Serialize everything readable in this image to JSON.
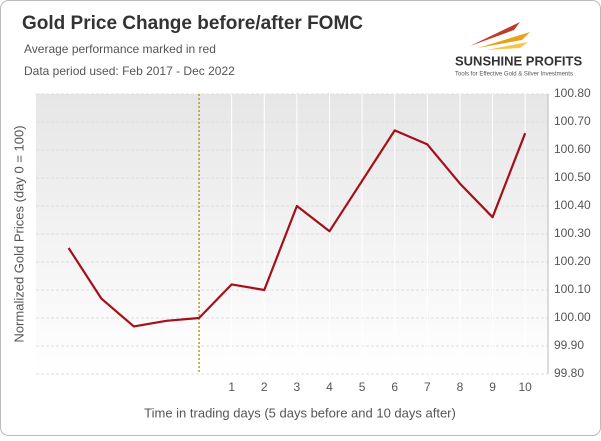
{
  "chart_data": {
    "type": "line",
    "title": "Gold Price Change before/after FOMC",
    "subtitle": "Average performance marked in red",
    "note": "Data period used: Feb 2017 - Dec 2022",
    "logo": {
      "name": "SUNSHINE PROFITS",
      "tagline": "Tools for Effective Gold & Silver Investments"
    },
    "x_label": "Time in trading days  (5 days before and 10 days after)",
    "y_label": "Normalized Gold Prices (day 0 = 100)",
    "x": [
      -4,
      -3,
      -2,
      -1,
      0,
      1,
      2,
      3,
      4,
      5,
      6,
      7,
      8,
      9,
      10
    ],
    "values": [
      100.25,
      100.07,
      99.97,
      99.99,
      100.0,
      100.12,
      100.1,
      100.4,
      100.31,
      100.49,
      100.67,
      100.62,
      100.48,
      100.36,
      100.66
    ],
    "color": "#a50f1a",
    "xlim": [
      -5,
      10.7
    ],
    "xticks": [
      1,
      2,
      3,
      4,
      5,
      6,
      7,
      8,
      9,
      10
    ],
    "ylim": [
      99.8,
      100.8
    ],
    "yticks": [
      {
        "value": 99.8,
        "label": "99.80"
      },
      {
        "value": 99.9,
        "label": "99.90"
      },
      {
        "value": 100.0,
        "label": "100.00"
      },
      {
        "value": 100.1,
        "label": "100.10"
      },
      {
        "value": 100.2,
        "label": "100.20"
      },
      {
        "value": 100.3,
        "label": "100.30"
      },
      {
        "value": 100.4,
        "label": "100.40"
      },
      {
        "value": 100.5,
        "label": "100.50"
      },
      {
        "value": 100.6,
        "label": "100.60"
      },
      {
        "value": 100.7,
        "label": "100.70"
      },
      {
        "value": 100.8,
        "label": "100.80"
      }
    ],
    "vline": 0,
    "vline_color": "#b8860b",
    "grid": true
  }
}
